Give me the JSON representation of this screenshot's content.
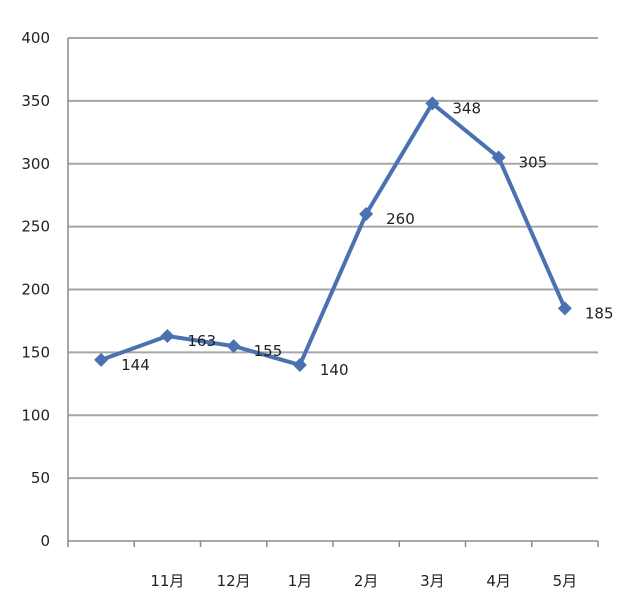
{
  "chart_data": {
    "type": "line",
    "title": "",
    "xlabel": "",
    "ylabel": "",
    "categories": [
      "",
      "11月",
      "12月",
      "1月",
      "2月",
      "3月",
      "4月",
      "5月"
    ],
    "values": [
      144,
      163,
      155,
      140,
      260,
      348,
      305,
      185
    ],
    "data_labels": [
      "144",
      "163",
      "155",
      "140",
      "260",
      "348",
      "305",
      "185"
    ],
    "y_ticks": [
      "0",
      "50",
      "100",
      "150",
      "200",
      "250",
      "300",
      "350",
      "400"
    ],
    "ylim": [
      0,
      400
    ],
    "grid": true,
    "legend": "none",
    "colors": {
      "line": "#4a72b0",
      "grid": "#a6a6a6",
      "axis": "#8c8c8c",
      "text": "#222222"
    }
  }
}
